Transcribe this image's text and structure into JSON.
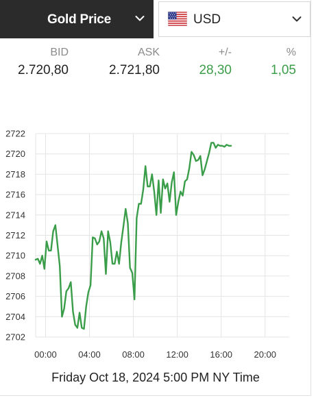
{
  "header": {
    "metal_label": "Gold Price",
    "currency_label": "USD",
    "currency_icon": "us-flag-icon",
    "dropdown_icon": "chevron-down-icon"
  },
  "quotes": {
    "bid": {
      "label": "BID",
      "value": "2.720,80"
    },
    "ask": {
      "label": "ASK",
      "value": "2.721,80"
    },
    "change": {
      "label": "+/-",
      "value": "28,30"
    },
    "percent": {
      "label": "%",
      "value": "1,05"
    }
  },
  "colors": {
    "accent_green": "#3a9d49",
    "header_dark": "#2b2b2b"
  },
  "chart_data": {
    "type": "line",
    "title": "",
    "xlabel": "",
    "ylabel": "",
    "x_ticks": [
      "00:00",
      "04:00",
      "08:00",
      "12:00",
      "16:00",
      "20:00"
    ],
    "y_ticks": [
      2702,
      2704,
      2706,
      2708,
      2710,
      2712,
      2714,
      2716,
      2718,
      2720,
      2722
    ],
    "xlim": [
      -0.9,
      22.2
    ],
    "ylim": [
      2702,
      2722
    ],
    "grid": true,
    "series": [
      {
        "x": [
          -0.9,
          -0.7,
          -0.5,
          -0.3,
          -0.1,
          0.1,
          0.3,
          0.5,
          0.7,
          0.9,
          1.1,
          1.3,
          1.5,
          1.7,
          1.9,
          2.1,
          2.3,
          2.5,
          2.7,
          2.9,
          3.1,
          3.3,
          3.5,
          3.7,
          3.9,
          4.1,
          4.3,
          4.5,
          4.7,
          4.9,
          5.1,
          5.3,
          5.5,
          5.7,
          5.9,
          6.1,
          6.3,
          6.5,
          6.7,
          6.9,
          7.1,
          7.3,
          7.5,
          7.7,
          7.9,
          8.1,
          8.3,
          8.5,
          8.7,
          8.9,
          9.1,
          9.3,
          9.5,
          9.7,
          9.9,
          10.1,
          10.3,
          10.5,
          10.7,
          10.9,
          11.1,
          11.3,
          11.5,
          11.7,
          11.9,
          12.1,
          12.3,
          12.5,
          12.7,
          12.9,
          13.1,
          13.3,
          13.5,
          13.7,
          13.9,
          14.1,
          14.3,
          14.5,
          14.7,
          14.9,
          15.1,
          15.3,
          15.5,
          15.7,
          15.9,
          16.1,
          16.3,
          16.5,
          16.7,
          16.9
        ],
        "values": [
          2709.6,
          2709.7,
          2709.2,
          2710.0,
          2708.7,
          2711.4,
          2710.5,
          2710.5,
          2712.4,
          2713.0,
          2711.0,
          2709.0,
          2704.0,
          2704.8,
          2706.5,
          2706.8,
          2707.4,
          2704.5,
          2703.2,
          2702.9,
          2704.4,
          2702.9,
          2702.8,
          2705.0,
          2706.4,
          2707.1,
          2711.8,
          2711.7,
          2711.1,
          2711.4,
          2712.4,
          2711.7,
          2708.2,
          2712.4,
          2711.3,
          2709.2,
          2709.2,
          2710.4,
          2709.2,
          2711.3,
          2712.9,
          2714.6,
          2713.2,
          2708.8,
          2708.3,
          2705.7,
          2713.7,
          2715.1,
          2715.1,
          2716.5,
          2718.8,
          2716.8,
          2716.8,
          2718.0,
          2716.3,
          2714.0,
          2717.4,
          2714.2,
          2717.5,
          2716.6,
          2717.1,
          2715.3,
          2717.2,
          2718.2,
          2714.0,
          2715.3,
          2716.3,
          2715.9,
          2717.3,
          2717.5,
          2718.6,
          2720.2,
          2719.9,
          2719.3,
          2719.4,
          2719.8,
          2717.9,
          2718.5,
          2719.3,
          2720.1,
          2721.1,
          2721.1,
          2720.6,
          2720.9,
          2720.8,
          2720.8,
          2720.7,
          2720.9,
          2720.8,
          2720.8
        ]
      }
    ]
  },
  "footer": {
    "timestamp": "Friday Oct 18, 2024 5:00 PM NY Time"
  }
}
